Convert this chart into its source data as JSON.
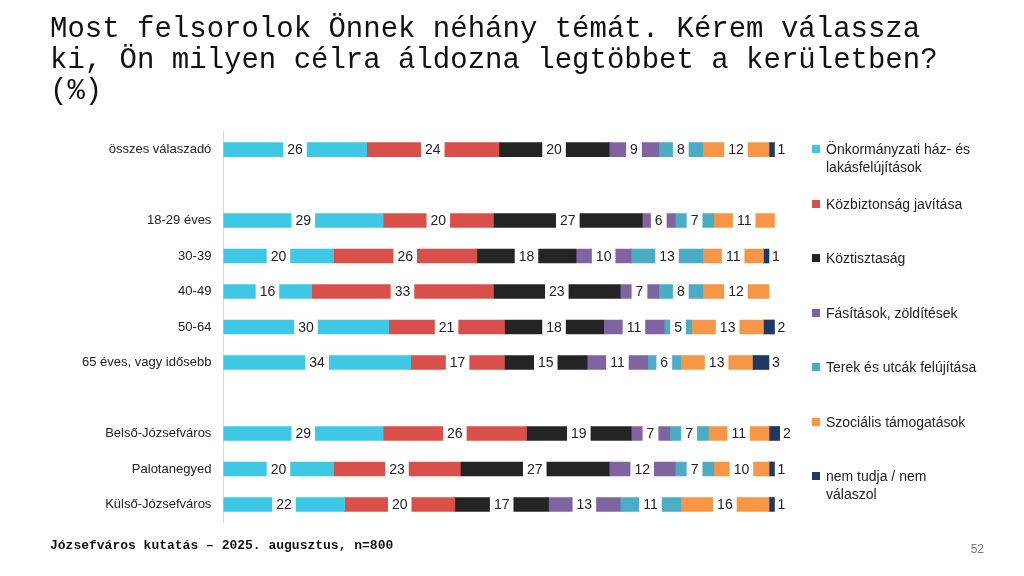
{
  "chart_data": {
    "type": "bar",
    "orientation": "horizontal",
    "stacked": true,
    "data_labels": true,
    "legend": "right",
    "grid": false,
    "title": "Most felsorolok Önnek néhány témát. Kérem válassza ki, Ön milyen célra áldozna legtöbbet a kerületben? (%)",
    "categories": [
      "összes válaszadó",
      null,
      "18-29 éves",
      "30-39",
      "40-49",
      "50-64",
      "65 éves, vagy idősebb",
      null,
      "Belső-Józsefváros",
      "Palotanegyed",
      "Külső-Józsefváros"
    ],
    "series": [
      {
        "name": "Önkormányzati ház- és lakásfelújítások",
        "color": "#3ec8e6",
        "values": [
          26,
          null,
          29,
          20,
          16,
          30,
          34,
          null,
          29,
          20,
          22
        ]
      },
      {
        "name": "Közbiztonság javítása",
        "color": "#d9504a",
        "values": [
          24,
          null,
          20,
          26,
          33,
          21,
          17,
          null,
          26,
          23,
          20
        ]
      },
      {
        "name": "Köztisztaság",
        "color": "#242424",
        "values": [
          20,
          null,
          27,
          18,
          23,
          18,
          15,
          null,
          19,
          27,
          17
        ]
      },
      {
        "name": "Fásítások, zöldítések",
        "color": "#8064a2",
        "values": [
          9,
          null,
          6,
          10,
          7,
          11,
          11,
          null,
          7,
          12,
          13
        ]
      },
      {
        "name": "Terek és utcák felújítása",
        "color": "#4bacc6",
        "values": [
          8,
          null,
          7,
          13,
          8,
          5,
          6,
          null,
          7,
          7,
          11
        ]
      },
      {
        "name": "Szociális támogatások",
        "color": "#f79646",
        "values": [
          12,
          null,
          11,
          11,
          12,
          13,
          13,
          null,
          11,
          10,
          16
        ]
      },
      {
        "name": "nem tudja / nem válaszol",
        "color": "#1f3864",
        "values": [
          1,
          null,
          null,
          1,
          null,
          2,
          3,
          null,
          2,
          1,
          1
        ]
      }
    ],
    "annotations": [
      "Józsefváros kutatás – 2025. augusztus, n=800",
      "52"
    ]
  }
}
